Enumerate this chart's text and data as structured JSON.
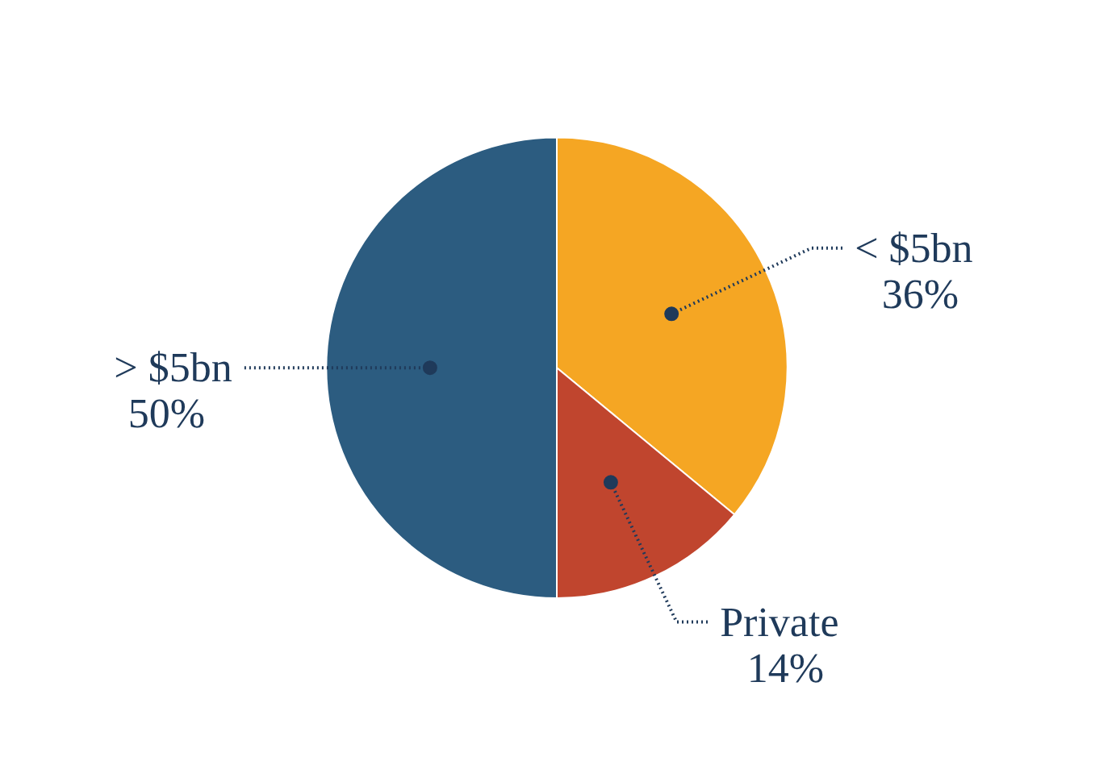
{
  "chart_data": {
    "type": "pie",
    "categories": [
      "< $5bn",
      "Private",
      "> $5bn"
    ],
    "values": [
      36,
      14,
      50
    ],
    "value_labels": [
      "36%",
      "14%",
      "50%"
    ],
    "colors": [
      "#f5a623",
      "#c0452e",
      "#2c5c80"
    ]
  }
}
